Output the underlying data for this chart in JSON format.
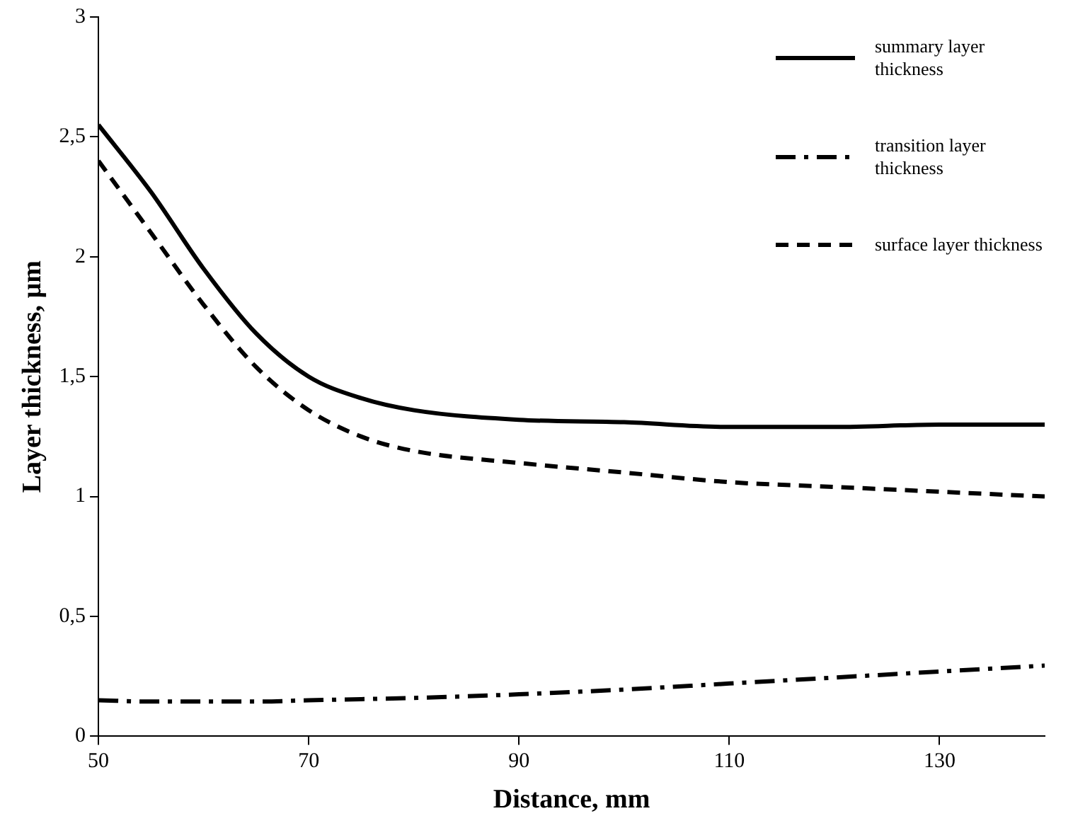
{
  "chart_data": {
    "type": "line",
    "xlabel": "Distance, mm",
    "ylabel": "Layer thickness, µm",
    "xlim": [
      50,
      140
    ],
    "xticks": [
      50,
      70,
      90,
      110,
      130
    ],
    "ylim": [
      0,
      3
    ],
    "yticks": [
      0,
      {
        "value": 0.5,
        "label": "0,5"
      },
      1,
      {
        "value": 1.5,
        "label": "1,5"
      },
      2,
      {
        "value": 2.5,
        "label": "2,5"
      },
      3
    ],
    "grid": false,
    "legend": "top right",
    "marker": "none",
    "x": [
      50,
      55,
      60,
      65,
      70,
      75,
      80,
      90,
      100,
      110,
      120,
      130,
      140
    ],
    "series": [
      {
        "name": "summary layer thickness",
        "color": "#000000",
        "line_style": "solid",
        "values": [
          2.55,
          2.27,
          1.95,
          1.68,
          1.5,
          1.41,
          1.36,
          1.32,
          1.31,
          1.29,
          1.29,
          1.3,
          1.3
        ]
      },
      {
        "name": "transition layer thickness",
        "color": "#000000",
        "line_style": "dashdot",
        "values": [
          0.15,
          0.145,
          0.145,
          0.145,
          0.15,
          0.155,
          0.16,
          0.175,
          0.195,
          0.22,
          0.245,
          0.27,
          0.295
        ]
      },
      {
        "name": "surface layer thickness",
        "color": "#000000",
        "line_style": "dashed",
        "values": [
          2.4,
          2.1,
          1.8,
          1.54,
          1.36,
          1.25,
          1.19,
          1.14,
          1.1,
          1.06,
          1.04,
          1.02,
          1.0
        ]
      }
    ]
  }
}
